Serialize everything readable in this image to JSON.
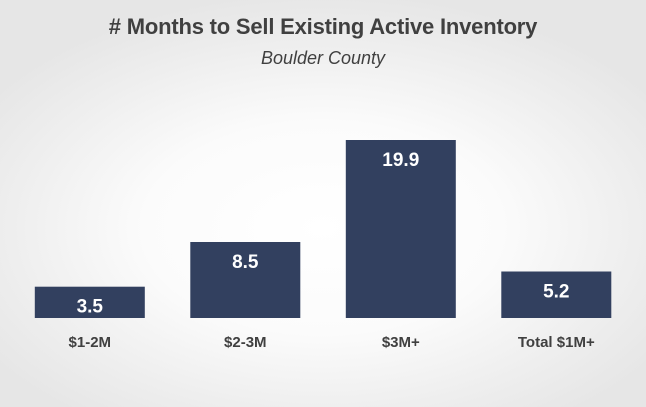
{
  "chart_data": {
    "type": "bar",
    "title": "# Months to Sell Existing Active Inventory",
    "subtitle": "Boulder County",
    "categories": [
      "$1-2M",
      "$2-3M",
      "$3M+",
      "Total $1M+"
    ],
    "values": [
      3.5,
      8.5,
      19.9,
      5.2
    ],
    "value_labels": [
      "3.5",
      "8.5",
      "19.9",
      "5.2"
    ],
    "xlabel": "",
    "ylabel": "",
    "ylim": [
      0,
      19.9
    ],
    "grid": false,
    "legend": "none",
    "bar_color": "#32405f"
  }
}
